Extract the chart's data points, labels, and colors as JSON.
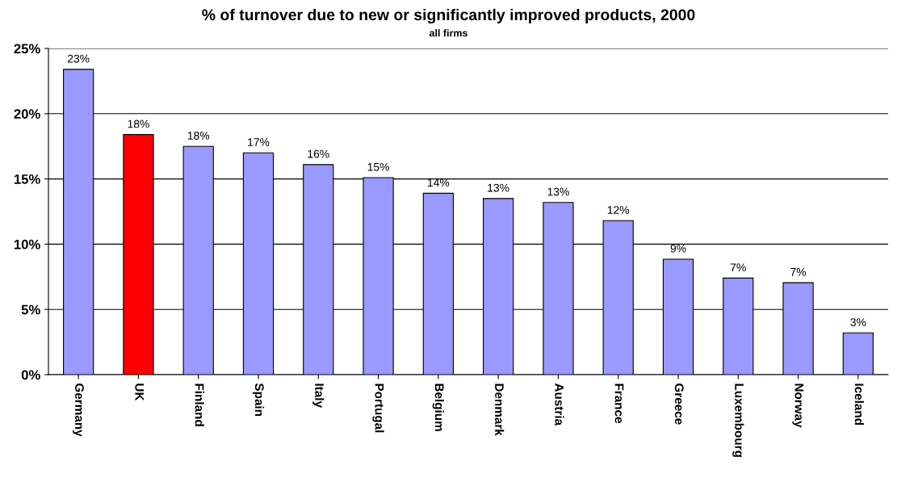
{
  "chart_data": {
    "type": "bar",
    "title": "% of turnover due to new or significantly improved products, 2000",
    "subtitle": "all firms",
    "categories": [
      "Germany",
      "UK",
      "Finland",
      "Spain",
      "Italy",
      "Portugal",
      "Belgium",
      "Denmark",
      "Austria",
      "France",
      "Greece",
      "Luxembourg",
      "Norway",
      "Iceland"
    ],
    "values": [
      23.4,
      18.4,
      17.5,
      17.0,
      16.1,
      15.1,
      13.9,
      13.5,
      13.2,
      11.8,
      8.85,
      7.4,
      7.05,
      3.2
    ],
    "colors": [
      "#9999ff",
      "#ff0000",
      "#9999ff",
      "#9999ff",
      "#9999ff",
      "#9999ff",
      "#9999ff",
      "#9999ff",
      "#9999ff",
      "#9999ff",
      "#9999ff",
      "#9999ff",
      "#9999ff",
      "#9999ff"
    ],
    "value_labels": [
      "23%",
      "18%",
      "18%",
      "17%",
      "16%",
      "15%",
      "14%",
      "13%",
      "13%",
      "12%",
      "9%",
      "7%",
      "7%",
      "3%"
    ],
    "ylim": [
      0,
      25
    ],
    "yticks": [
      {
        "value": 0,
        "label": "0%"
      },
      {
        "value": 5,
        "label": "5%"
      },
      {
        "value": 10,
        "label": "10%"
      },
      {
        "value": 15,
        "label": "15%"
      },
      {
        "value": 20,
        "label": "20%"
      },
      {
        "value": 25,
        "label": "25%"
      }
    ],
    "grid": "y"
  }
}
